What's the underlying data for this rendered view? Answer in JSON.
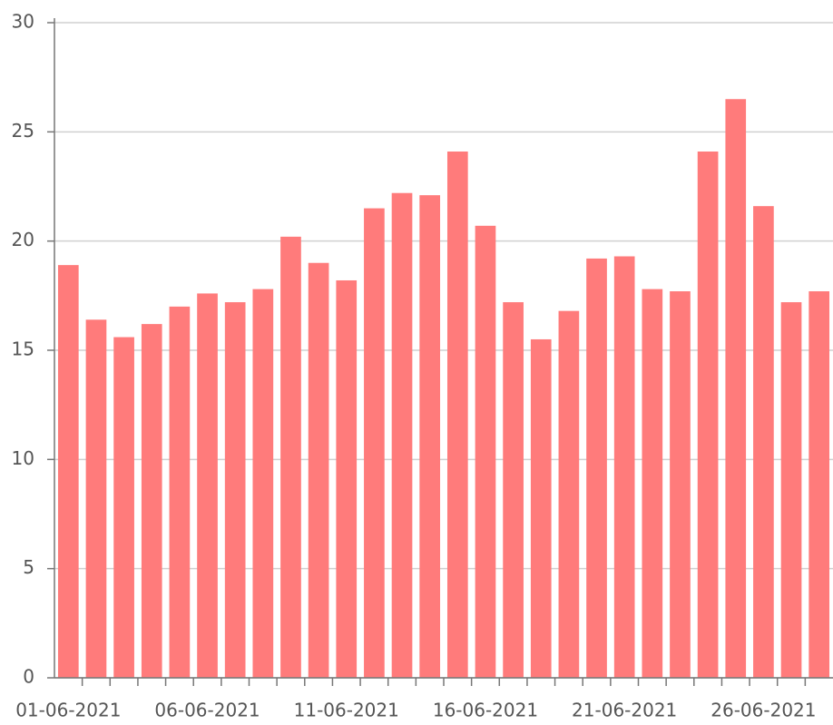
{
  "chart_data": {
    "type": "bar",
    "categories": [
      "01-06-2021",
      null,
      null,
      null,
      null,
      "06-06-2021",
      null,
      null,
      null,
      null,
      "11-06-2021",
      null,
      null,
      null,
      null,
      "16-06-2021",
      null,
      null,
      null,
      null,
      "21-06-2021",
      null,
      null,
      null,
      null,
      "26-06-2021",
      null,
      null
    ],
    "values": [
      18.9,
      16.4,
      15.6,
      16.2,
      17.0,
      17.6,
      17.2,
      17.8,
      20.2,
      19.0,
      18.2,
      21.5,
      22.2,
      22.1,
      24.1,
      20.7,
      17.2,
      15.5,
      16.8,
      19.2,
      19.3,
      17.8,
      17.7,
      24.1,
      26.5,
      21.6,
      17.2,
      17.7
    ],
    "color": "#ff7b7b",
    "ylim": [
      0,
      30
    ],
    "yticks": [
      0,
      5,
      10,
      15,
      20,
      25,
      30
    ],
    "grid": true
  }
}
